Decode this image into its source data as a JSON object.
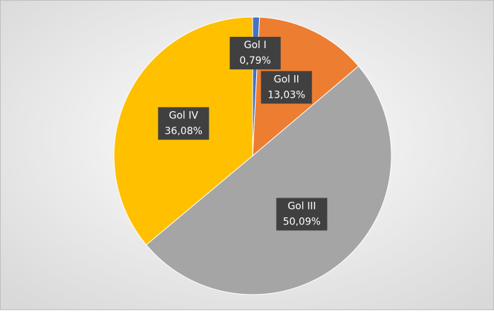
{
  "chart_data": {
    "type": "pie",
    "categories": [
      "Gol I",
      "Gol II",
      "Gol III",
      "Gol IV"
    ],
    "values": [
      0.79,
      13.03,
      50.09,
      36.08
    ],
    "value_labels": [
      "0,79%",
      "13,03%",
      "50,09%",
      "36,08%"
    ],
    "colors": [
      "#4472c4",
      "#ed7d31",
      "#a5a5a5",
      "#ffc000"
    ]
  }
}
